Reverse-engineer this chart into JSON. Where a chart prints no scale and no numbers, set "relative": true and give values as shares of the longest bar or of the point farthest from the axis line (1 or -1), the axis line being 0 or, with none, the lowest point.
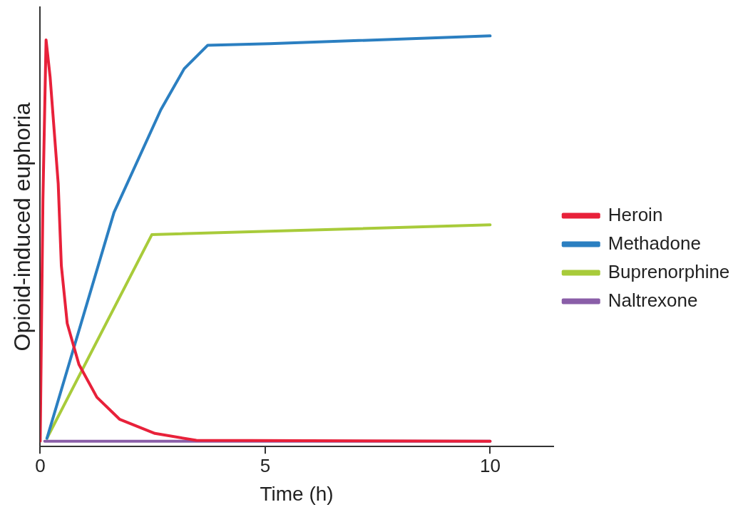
{
  "chart_data": {
    "type": "line",
    "xlabel": "Time (h)",
    "ylabel": "Opioid-induced euphoria",
    "relative": true,
    "xlim": [
      0,
      11.4
    ],
    "xticks": [
      0,
      5,
      10
    ],
    "legend": "right",
    "marker": "none",
    "line_style": "solid",
    "series": [
      {
        "name": "Heroin",
        "color": "#e8213a",
        "x": [
          0,
          0.06,
          0.13,
          0.22,
          0.4,
          0.47,
          0.6,
          0.86,
          1.26,
          1.77,
          2.55,
          3.47,
          10
        ],
        "values": [
          0.013,
          0.6,
          0.99,
          0.9,
          0.64,
          0.44,
          0.3,
          0.2,
          0.12,
          0.066,
          0.032,
          0.015,
          0.013
        ]
      },
      {
        "name": "Methadone",
        "color": "#2b7fc1",
        "x": [
          0.15,
          1.64,
          2.68,
          3.2,
          3.72,
          5.1,
          10
        ],
        "values": [
          0.02,
          0.57,
          0.82,
          0.92,
          0.977,
          0.981,
          1.0
        ]
      },
      {
        "name": "Buprenorphine",
        "color": "#a8cb3a",
        "x": [
          0.15,
          2.48,
          10
        ],
        "values": [
          0.02,
          0.516,
          0.54
        ]
      },
      {
        "name": "Naltrexone",
        "color": "#8a5ea8",
        "x": [
          0.1,
          10
        ],
        "values": [
          0.013,
          0.013
        ]
      }
    ]
  }
}
